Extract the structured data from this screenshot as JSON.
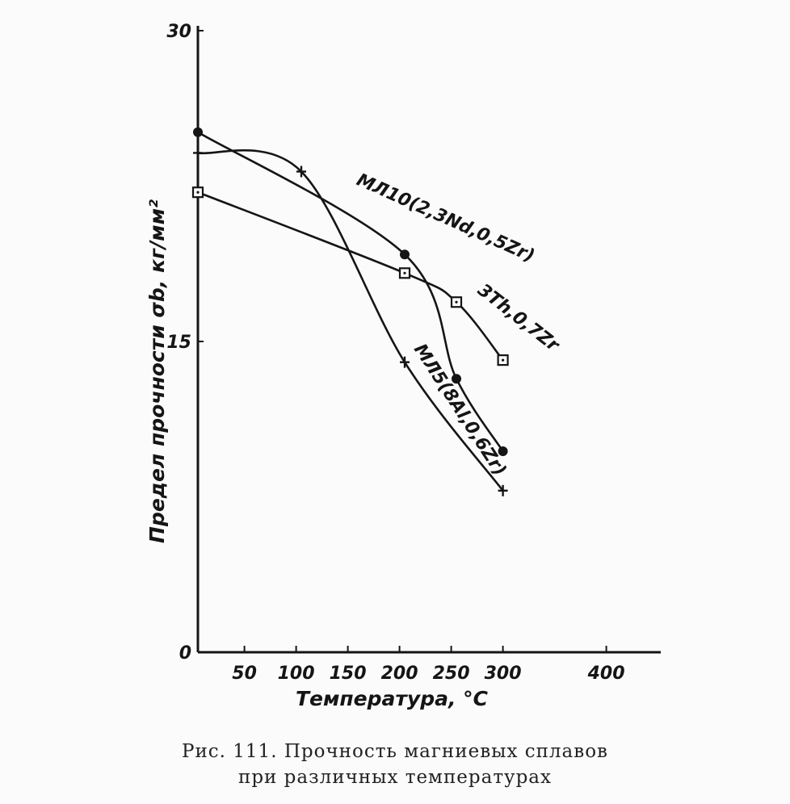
{
  "chart_data": {
    "type": "line",
    "xlabel": "Температура, °C",
    "ylabel": "Предел прочности σb, кг/мм²",
    "x_ticks": [
      "50",
      "100",
      "150",
      "200",
      "250",
      "300",
      "400"
    ],
    "x_tick_values": [
      50,
      100,
      150,
      200,
      250,
      300,
      400
    ],
    "y_ticks": [
      "30",
      "15",
      "0"
    ],
    "y_tick_values": [
      30,
      15,
      0
    ],
    "xlim": [
      5,
      455
    ],
    "ylim": [
      0,
      30
    ],
    "grid": false,
    "series": [
      {
        "name": "МЛ10(2,3Nd,0,5Zr)",
        "marker": "circle",
        "x": [
          5,
          205,
          255,
          300
        ],
        "y": [
          25.1,
          19.2,
          13.2,
          9.7
        ]
      },
      {
        "name": "3Th,0,7Zr",
        "marker": "square",
        "x": [
          5,
          205,
          255,
          300
        ],
        "y": [
          22.2,
          18.3,
          16.9,
          14.1
        ]
      },
      {
        "name": "МЛ5(8Al,0,6Zr)",
        "marker": "cross",
        "x": [
          5,
          105,
          205,
          300
        ],
        "y": [
          24.1,
          23.2,
          14.0,
          7.8
        ]
      }
    ]
  },
  "caption": {
    "line1": "Рис.   111. Прочность   магниевых   сплавов",
    "line2": "при различных температурах"
  }
}
